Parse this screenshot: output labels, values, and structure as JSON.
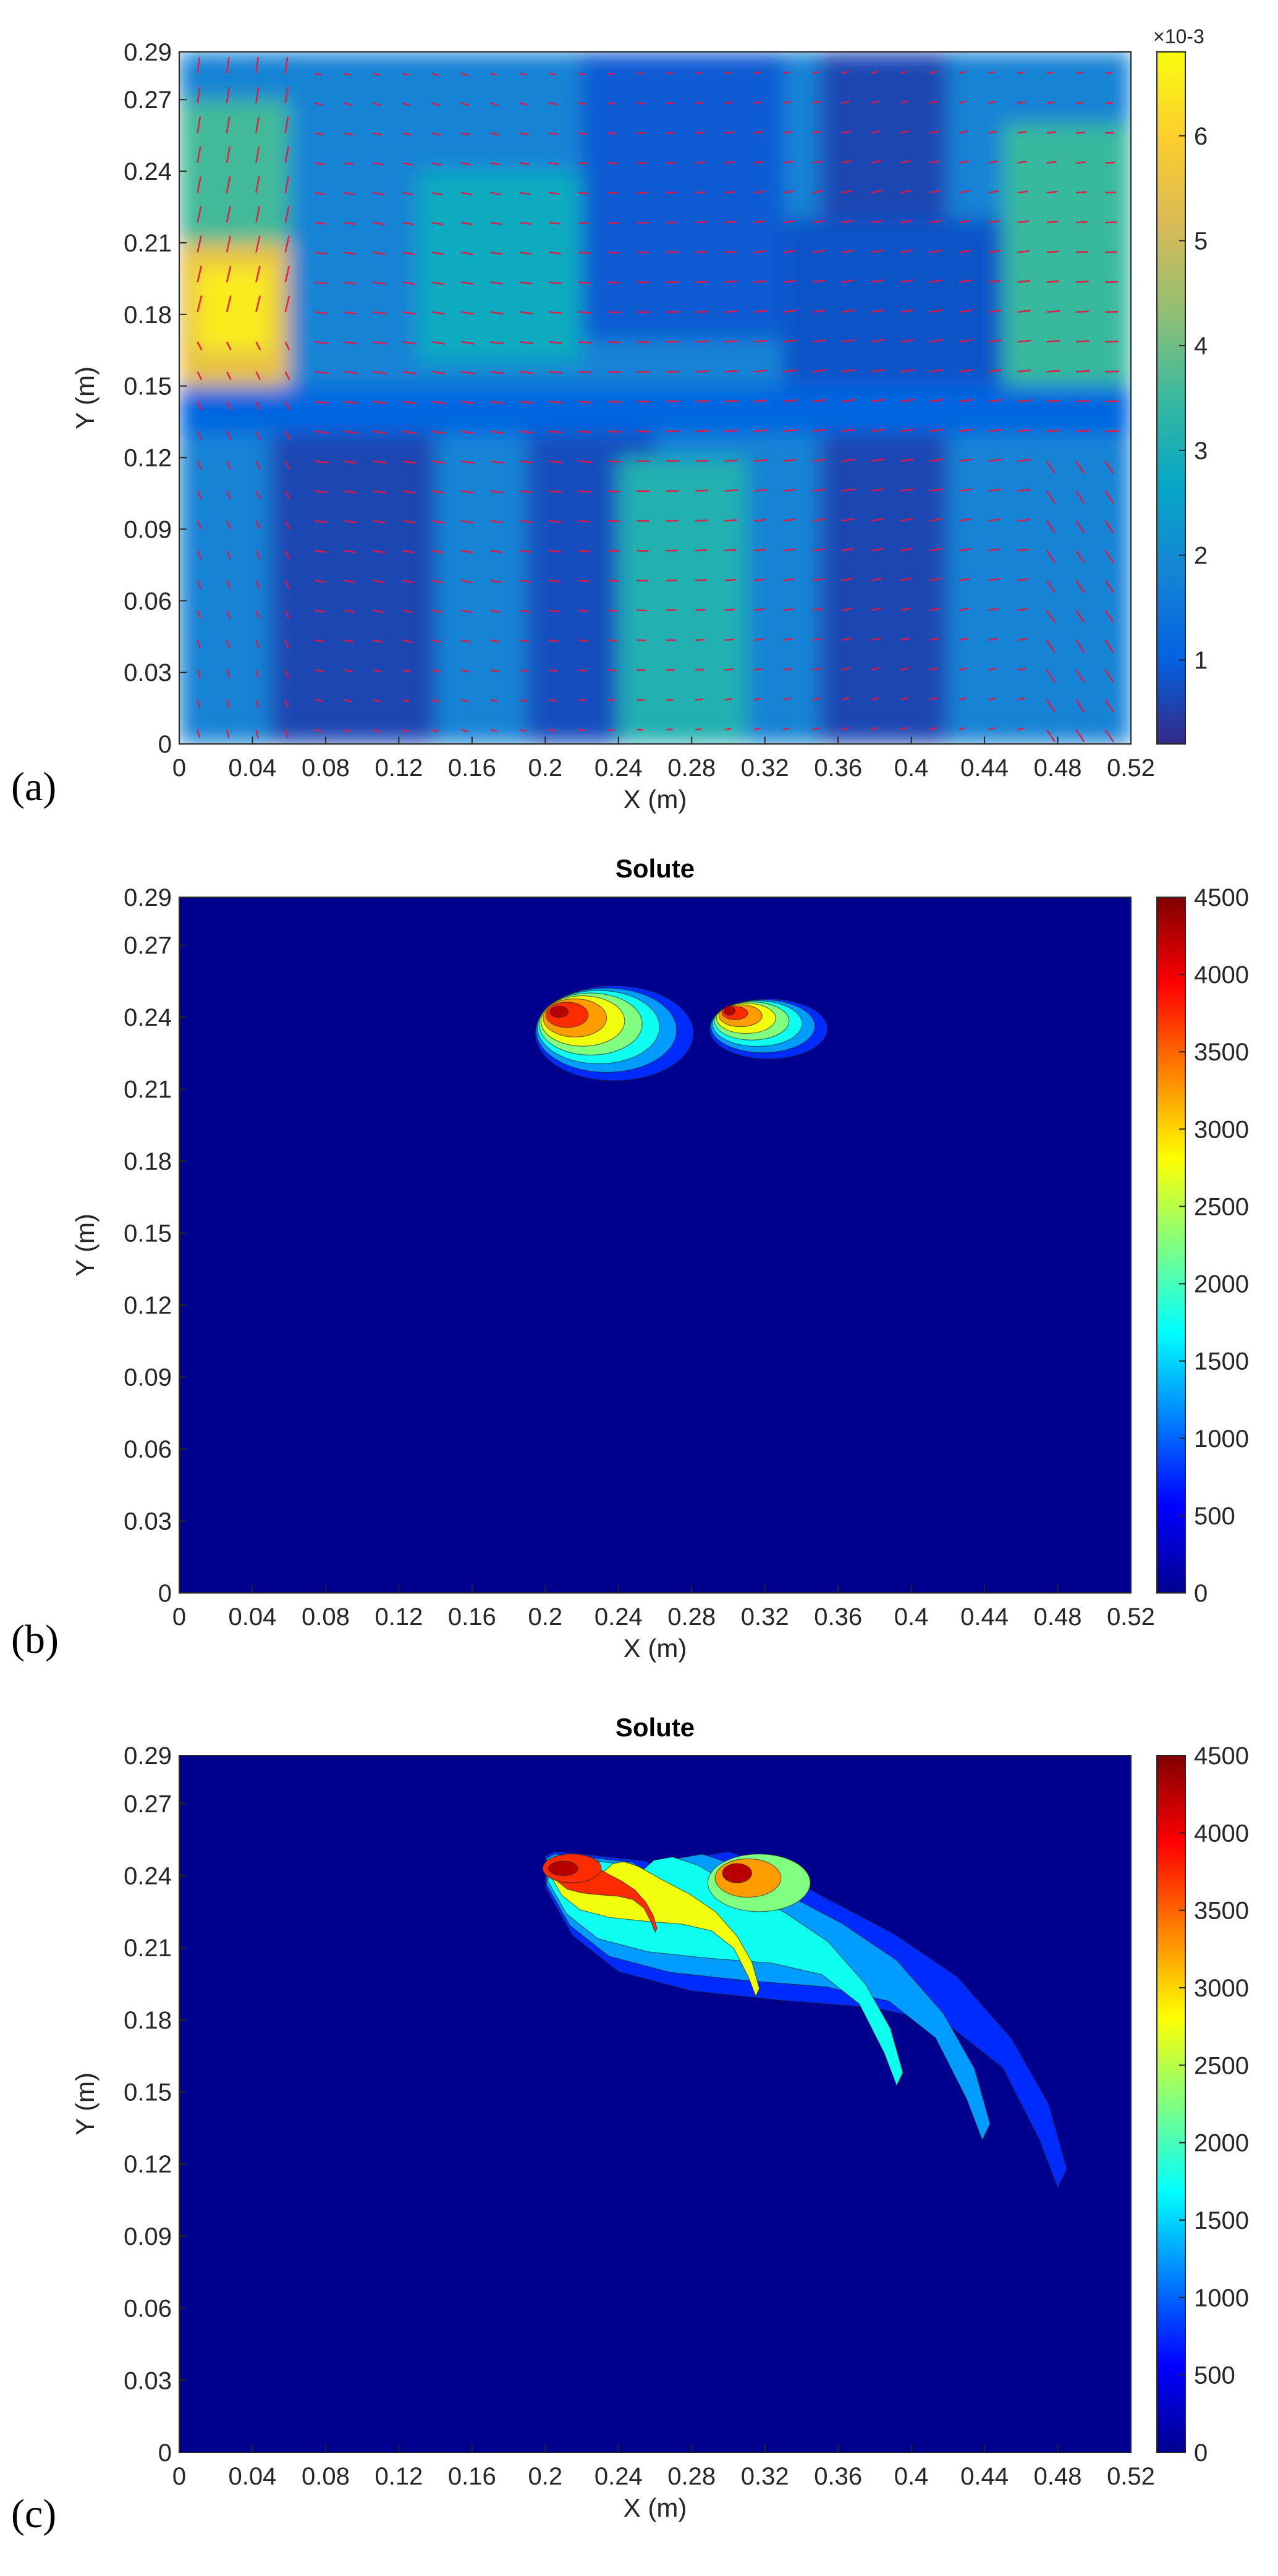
{
  "colors": {
    "parula": [
      "#352a87",
      "#0363e1",
      "#1485d4",
      "#06a7c6",
      "#38b99e",
      "#92bf73",
      "#d9ba56",
      "#fcce2e",
      "#f9fb0e"
    ],
    "jet": [
      "#00008f",
      "#0000ff",
      "#0080ff",
      "#00ffff",
      "#80ff80",
      "#ffff00",
      "#ff8000",
      "#ff0000",
      "#800000"
    ],
    "arrow": "#e8163f",
    "axis": "#262626"
  },
  "chart_data": [
    {
      "id": "a",
      "panel_label": "(a)",
      "type": "heatmap",
      "title": "",
      "xlabel": "X (m)",
      "ylabel": "Y (m)",
      "xlim": [
        0,
        0.52
      ],
      "ylim": [
        0,
        0.29
      ],
      "xticks": [
        "0",
        "0.04",
        "0.08",
        "0.12",
        "0.16",
        "0.2",
        "0.24",
        "0.28",
        "0.32",
        "0.36",
        "0.4",
        "0.44",
        "0.48",
        "0.52"
      ],
      "yticks": [
        "0",
        "0.03",
        "0.06",
        "0.09",
        "0.12",
        "0.15",
        "0.18",
        "0.21",
        "0.24",
        "0.27",
        "0.29"
      ],
      "colorbar": {
        "colormap": "parula",
        "range": [
          0.0002,
          0.0068
        ],
        "ticks": [
          "1",
          "2",
          "3",
          "4",
          "5",
          "6"
        ],
        "multiplier": "×10-3"
      },
      "overlay": "velocity vector field (quiver)",
      "regions": [
        {
          "x": [
            0.0,
            0.52
          ],
          "y": [
            0.0,
            0.29
          ],
          "value": 0.0018
        },
        {
          "x": [
            0.05,
            0.14
          ],
          "y": [
            0.0,
            0.15
          ],
          "value": 0.0006
        },
        {
          "x": [
            0.19,
            0.26
          ],
          "y": [
            0.0,
            0.13
          ],
          "value": 0.0007
        },
        {
          "x": [
            0.35,
            0.42
          ],
          "y": [
            0.0,
            0.29
          ],
          "value": 0.0006
        },
        {
          "x": [
            0.22,
            0.33
          ],
          "y": [
            0.17,
            0.29
          ],
          "value": 0.0009
        },
        {
          "x": [
            0.33,
            0.45
          ],
          "y": [
            0.15,
            0.22
          ],
          "value": 0.0008
        },
        {
          "x": [
            0.0,
            0.52
          ],
          "y": [
            0.13,
            0.15
          ],
          "value": 0.0011
        },
        {
          "x": [
            0.24,
            0.31
          ],
          "y": [
            0.0,
            0.12
          ],
          "value": 0.0031
        },
        {
          "x": [
            0.45,
            0.52
          ],
          "y": [
            0.15,
            0.26
          ],
          "value": 0.0035
        },
        {
          "x": [
            0.13,
            0.22
          ],
          "y": [
            0.16,
            0.24
          ],
          "value": 0.0028
        },
        {
          "x": [
            0.0,
            0.06
          ],
          "y": [
            0.2,
            0.27
          ],
          "value": 0.0036
        },
        {
          "x": [
            0.0,
            0.06
          ],
          "y": [
            0.15,
            0.21
          ],
          "value": 0.0055
        },
        {
          "x": [
            0.01,
            0.05
          ],
          "y": [
            0.165,
            0.2
          ],
          "value": 0.0065
        }
      ]
    },
    {
      "id": "b",
      "panel_label": "(b)",
      "type": "heatmap",
      "title": "Solute",
      "xlabel": "X (m)",
      "ylabel": "Y (m)",
      "xlim": [
        0,
        0.52
      ],
      "ylim": [
        0,
        0.29
      ],
      "xticks": [
        "0",
        "0.04",
        "0.08",
        "0.12",
        "0.16",
        "0.2",
        "0.24",
        "0.28",
        "0.32",
        "0.36",
        "0.4",
        "0.44",
        "0.48",
        "0.52"
      ],
      "yticks": [
        "0",
        "0.03",
        "0.06",
        "0.09",
        "0.12",
        "0.15",
        "0.18",
        "0.21",
        "0.24",
        "0.27",
        "0.29"
      ],
      "colorbar": {
        "colormap": "jet",
        "range": [
          0,
          4500
        ],
        "ticks": [
          "0",
          "500",
          "1000",
          "1500",
          "2000",
          "2500",
          "3000",
          "3500",
          "4000",
          "4500"
        ]
      },
      "plumes": [
        {
          "cx": 0.242,
          "cy": 0.232,
          "rx": 0.048,
          "ry": 0.022,
          "peak_x": 0.205,
          "peak_y": 0.243,
          "peak": 4300
        },
        {
          "cx": 0.325,
          "cy": 0.234,
          "rx": 0.036,
          "ry": 0.014,
          "peak_x": 0.3,
          "peak_y": 0.243,
          "peak": 4100
        }
      ]
    },
    {
      "id": "c",
      "panel_label": "(c)",
      "type": "heatmap",
      "title": "Solute",
      "xlabel": "X (m)",
      "ylabel": "Y (m)",
      "xlim": [
        0,
        0.52
      ],
      "ylim": [
        0,
        0.29
      ],
      "xticks": [
        "0",
        "0.04",
        "0.08",
        "0.12",
        "0.16",
        "0.2",
        "0.24",
        "0.28",
        "0.32",
        "0.36",
        "0.4",
        "0.44",
        "0.48",
        "0.52"
      ],
      "yticks": [
        "0",
        "0.03",
        "0.06",
        "0.09",
        "0.12",
        "0.15",
        "0.18",
        "0.21",
        "0.24",
        "0.27",
        "0.29"
      ],
      "colorbar": {
        "colormap": "jet",
        "range": [
          0,
          4500
        ],
        "ticks": [
          "0",
          "500",
          "1000",
          "1500",
          "2000",
          "2500",
          "3000",
          "3500",
          "4000",
          "4500"
        ]
      },
      "plume_outline": [
        [
          0.2,
          0.248
        ],
        [
          0.205,
          0.25
        ],
        [
          0.22,
          0.249
        ],
        [
          0.255,
          0.246
        ],
        [
          0.27,
          0.238
        ],
        [
          0.285,
          0.248
        ],
        [
          0.3,
          0.25
        ],
        [
          0.32,
          0.245
        ],
        [
          0.35,
          0.232
        ],
        [
          0.39,
          0.216
        ],
        [
          0.425,
          0.198
        ],
        [
          0.455,
          0.172
        ],
        [
          0.475,
          0.145
        ],
        [
          0.485,
          0.118
        ],
        [
          0.48,
          0.11
        ],
        [
          0.47,
          0.13
        ],
        [
          0.45,
          0.16
        ],
        [
          0.42,
          0.178
        ],
        [
          0.38,
          0.185
        ],
        [
          0.33,
          0.188
        ],
        [
          0.28,
          0.192
        ],
        [
          0.24,
          0.2
        ],
        [
          0.215,
          0.215
        ],
        [
          0.2,
          0.235
        ]
      ],
      "levels": [
        {
          "value": 500,
          "scale": 1.0
        },
        {
          "value": 1000,
          "scale": 0.85
        },
        {
          "value": 1500,
          "scale": 0.68
        },
        {
          "value": 2500,
          "scale": 0.4
        },
        {
          "value": 3500,
          "scale": 0.2
        }
      ],
      "peaks": [
        {
          "x": 0.205,
          "y": 0.243,
          "value": 4300
        },
        {
          "x": 0.3,
          "y": 0.243,
          "value": 4100
        }
      ]
    }
  ]
}
